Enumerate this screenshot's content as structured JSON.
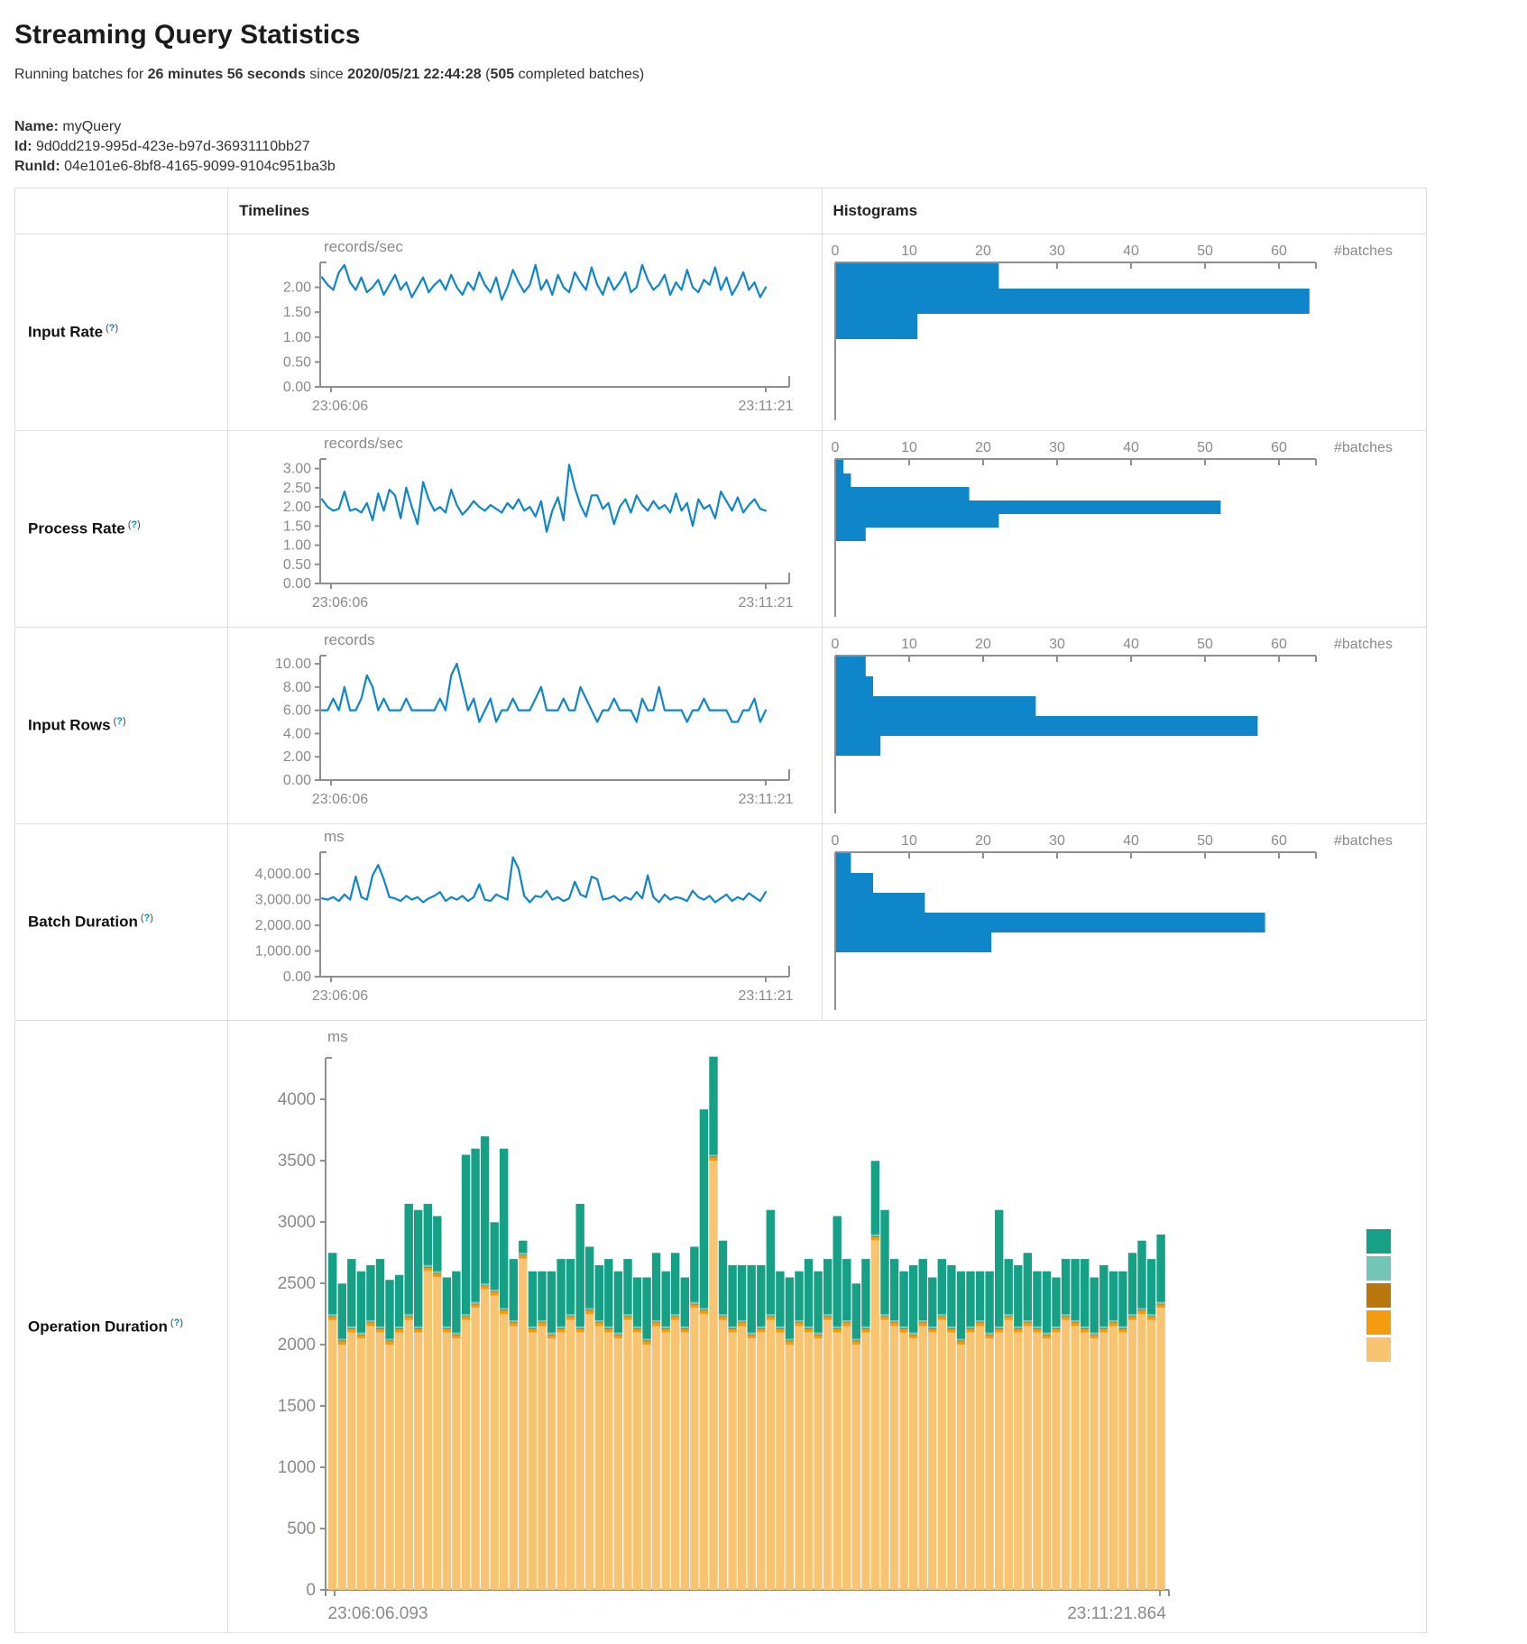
{
  "page": {
    "title": "Streaming Query Statistics",
    "running_line": {
      "prefix": "Running batches for ",
      "duration": "26 minutes 56 seconds",
      "since": " since ",
      "start_time": "2020/05/21 22:44:28",
      "open": " (",
      "batch_count": "505",
      "suffix": " completed batches)"
    },
    "name_label": "Name:",
    "name_value": "myQuery",
    "id_label": "Id:",
    "id_value": "9d0dd219-995d-423e-b97d-36931110bb27",
    "runid_label": "RunId:",
    "runid_value": "04e101e6-8bf8-4165-9099-9104c951ba3b"
  },
  "table": {
    "col_timelines": "Timelines",
    "col_histograms": "Histograms",
    "hint": {
      "open": "(",
      "q": "?",
      "close": ")"
    }
  },
  "colors": {
    "accent_blue": "#0f86c9",
    "axis_gray": "#8f8f8f",
    "tick_text_gray": "#8a8a8a",
    "border_gray": "#dddddd",
    "help_blue": "#0a8ac9"
  },
  "chart_data": [
    {
      "label": "Input Rate",
      "type": "line",
      "unit": "records/sec",
      "x_range": [
        "23:06:06",
        "23:11:21"
      ],
      "ytick_values": [
        2.0,
        1.5,
        1.0,
        0.5,
        0
      ],
      "ytick_labels": [
        "2.00",
        "1.50",
        "1.00",
        "0.50",
        "0.00"
      ],
      "ymax": 2.5,
      "values": [
        2.2,
        2.05,
        1.95,
        2.3,
        2.45,
        2.1,
        1.95,
        2.2,
        1.9,
        2.0,
        2.15,
        1.85,
        2.05,
        2.25,
        1.95,
        2.1,
        1.8,
        2.0,
        2.2,
        1.9,
        2.05,
        2.15,
        1.95,
        2.25,
        2.0,
        1.85,
        2.1,
        1.95,
        2.3,
        2.05,
        1.9,
        2.2,
        1.75,
        2.0,
        2.35,
        2.1,
        1.9,
        2.05,
        2.45,
        1.95,
        2.15,
        1.85,
        2.25,
        2.0,
        1.9,
        2.3,
        2.1,
        1.95,
        2.4,
        2.05,
        1.85,
        2.2,
        1.95,
        2.1,
        2.3,
        1.9,
        2.0,
        2.45,
        2.15,
        1.95,
        2.05,
        2.25,
        1.85,
        2.1,
        1.95,
        2.35,
        2.0,
        1.9,
        2.15,
        2.05,
        2.4,
        1.95,
        2.2,
        1.85,
        2.05,
        2.3,
        1.95,
        2.1,
        1.8,
        2.0
      ],
      "histogram": {
        "type": "bar",
        "orientation": "horizontal",
        "xticks": [
          0,
          10,
          20,
          30,
          40,
          50,
          60
        ],
        "xmax": 65,
        "xlabel": "#batches",
        "bin_counts": [
          22,
          64,
          11
        ]
      }
    },
    {
      "label": "Process Rate",
      "type": "line",
      "unit": "records/sec",
      "x_range": [
        "23:06:06",
        "23:11:21"
      ],
      "ytick_values": [
        3.0,
        2.5,
        2.0,
        1.5,
        1.0,
        0.5,
        0
      ],
      "ytick_labels": [
        "3.00",
        "2.50",
        "2.00",
        "1.50",
        "1.00",
        "0.50",
        "0.00"
      ],
      "ymax": 3.25,
      "values": [
        2.2,
        2.0,
        1.9,
        1.95,
        2.4,
        1.9,
        1.95,
        1.85,
        2.1,
        1.65,
        2.35,
        1.9,
        2.45,
        2.3,
        1.7,
        2.5,
        2.0,
        1.55,
        2.65,
        2.2,
        1.9,
        2.0,
        1.85,
        2.45,
        2.05,
        1.8,
        1.95,
        2.15,
        2.0,
        1.9,
        2.05,
        1.95,
        1.85,
        2.1,
        1.95,
        2.2,
        1.9,
        2.0,
        1.75,
        2.15,
        1.35,
        1.9,
        2.25,
        1.65,
        3.1,
        2.5,
        2.05,
        1.75,
        2.3,
        2.3,
        1.95,
        2.1,
        1.55,
        2.0,
        2.2,
        1.85,
        2.3,
        2.05,
        1.9,
        2.15,
        1.95,
        2.05,
        1.85,
        2.35,
        1.9,
        2.1,
        1.5,
        2.2,
        1.95,
        2.05,
        1.7,
        2.4,
        2.15,
        1.9,
        2.25,
        1.85,
        2.05,
        2.2,
        1.95,
        1.9
      ],
      "histogram": {
        "type": "bar",
        "orientation": "horizontal",
        "xticks": [
          0,
          10,
          20,
          30,
          40,
          50,
          60
        ],
        "xmax": 65,
        "xlabel": "#batches",
        "bin_counts": [
          1,
          2,
          18,
          52,
          22,
          4
        ]
      }
    },
    {
      "label": "Input Rows",
      "type": "line",
      "unit": "records",
      "x_range": [
        "23:06:06",
        "23:11:21"
      ],
      "ytick_values": [
        10,
        8,
        6,
        4,
        2,
        0
      ],
      "ytick_labels": [
        "10.00",
        "8.00",
        "6.00",
        "4.00",
        "2.00",
        "0.00"
      ],
      "ymax": 10.7,
      "values": [
        6,
        6,
        7,
        6,
        8,
        6,
        6,
        7,
        9,
        8,
        6,
        7,
        6,
        6,
        6,
        7,
        6,
        6,
        6,
        6,
        6,
        7,
        6,
        9,
        10,
        8,
        6,
        7,
        5,
        6,
        7,
        5,
        6,
        6,
        7,
        6,
        6,
        6,
        7,
        8,
        6,
        6,
        6,
        7,
        6,
        6,
        8,
        7,
        6,
        5,
        6,
        6,
        7,
        6,
        6,
        6,
        5,
        7,
        6,
        6,
        8,
        6,
        6,
        6,
        6,
        5,
        6,
        6,
        7,
        6,
        6,
        6,
        6,
        5,
        5,
        6,
        6,
        7,
        5,
        6
      ],
      "histogram": {
        "type": "bar",
        "orientation": "horizontal",
        "xticks": [
          0,
          10,
          20,
          30,
          40,
          50,
          60
        ],
        "xmax": 65,
        "xlabel": "#batches",
        "bin_counts": [
          4,
          5,
          27,
          57,
          6
        ]
      }
    },
    {
      "label": "Batch Duration",
      "type": "line",
      "unit": "ms",
      "x_range": [
        "23:06:06",
        "23:11:21"
      ],
      "ytick_values": [
        4000,
        3000,
        2000,
        1000,
        0
      ],
      "ytick_labels": [
        "4,000.00",
        "3,000.00",
        "2,000.00",
        "1,000.00",
        "0.00"
      ],
      "ymax": 4850,
      "values": [
        3050,
        3000,
        3100,
        2950,
        3200,
        3000,
        3900,
        3100,
        3000,
        3950,
        4350,
        3800,
        3100,
        3050,
        2950,
        3150,
        3000,
        3100,
        2900,
        3050,
        3150,
        3300,
        2950,
        3100,
        3000,
        3150,
        2950,
        3100,
        3600,
        3000,
        2950,
        3200,
        3100,
        3000,
        4650,
        4200,
        3150,
        2900,
        3150,
        3100,
        3350,
        3000,
        3100,
        2950,
        3050,
        3700,
        3200,
        3100,
        3900,
        3800,
        3000,
        3050,
        3150,
        2950,
        3100,
        3000,
        3300,
        3050,
        3950,
        3100,
        2900,
        3200,
        3000,
        3100,
        3050,
        2950,
        3350,
        3100,
        3000,
        3150,
        2900,
        3050,
        3200,
        2950,
        3100,
        3000,
        3250,
        3100,
        2950,
        3300
      ],
      "histogram": {
        "type": "bar",
        "orientation": "horizontal",
        "xticks": [
          0,
          10,
          20,
          30,
          40,
          50,
          60
        ],
        "xmax": 65,
        "xlabel": "#batches",
        "bin_counts": [
          2,
          5,
          12,
          58,
          21
        ]
      }
    },
    {
      "label": "Operation Duration",
      "type": "stacked-bar",
      "unit": "ms",
      "x_range": [
        "23:06:06.093",
        "23:11:21.864"
      ],
      "ytick_values": [
        4000,
        3500,
        3000,
        2500,
        2000,
        1500,
        1000,
        500,
        0
      ],
      "ytick_labels": [
        "4000",
        "3500",
        "3000",
        "2500",
        "2000",
        "1500",
        "1000",
        "500",
        "0"
      ],
      "ymax": 4400,
      "legend_colors_top_to_bottom": [
        "#16A085",
        "#73C6B6",
        "#B9770E",
        "#F39C12",
        "#F8C471"
      ],
      "series_bottom_to_top": [
        {
          "name": "light-orange",
          "color": "#F8C471",
          "values": [
            2200,
            2000,
            2100,
            2050,
            2150,
            2100,
            2000,
            2100,
            2200,
            2100,
            2600,
            2550,
            2100,
            2050,
            2200,
            2300,
            2450,
            2400,
            2250,
            2150,
            2700,
            2100,
            2150,
            2050,
            2100,
            2200,
            2100,
            2250,
            2150,
            2100,
            2050,
            2200,
            2100,
            2000,
            2150,
            2100,
            2200,
            2100,
            2300,
            2250,
            3500,
            2200,
            2100,
            2150,
            2050,
            2100,
            2200,
            2100,
            2000,
            2150,
            2100,
            2050,
            2200,
            2100,
            2150,
            2000,
            2100,
            2850,
            2200,
            2150,
            2100,
            2050,
            2150,
            2100,
            2200,
            2100,
            2000,
            2100,
            2150,
            2050,
            2100,
            2200,
            2100,
            2150,
            2100,
            2050,
            2100,
            2200,
            2150,
            2100,
            2050,
            2100,
            2150,
            2100,
            2200,
            2250,
            2200,
            2300
          ]
        },
        {
          "name": "orange",
          "color": "#F39C12",
          "values": 25
        },
        {
          "name": "brown",
          "color": "#B9770E",
          "values": 8
        },
        {
          "name": "light-teal",
          "color": "#73C6B6",
          "values": 15
        },
        {
          "name": "teal",
          "color": "#16A085",
          "values": [
            500,
            450,
            550,
            500,
            450,
            550,
            480,
            420,
            900,
            950,
            500,
            450,
            400,
            500,
            1300,
            1250,
            1200,
            550,
            1300,
            500,
            100,
            450,
            400,
            500,
            550,
            450,
            1000,
            500,
            450,
            550,
            500,
            450,
            400,
            500,
            550,
            450,
            500,
            400,
            450,
            1620,
            800,
            600,
            500,
            450,
            550,
            500,
            850,
            450,
            500,
            400,
            550,
            500,
            450,
            900,
            500,
            450,
            550,
            600,
            850,
            500,
            450,
            550,
            500,
            400,
            450,
            500,
            550,
            450,
            400,
            500,
            950,
            450,
            500,
            550,
            450,
            500,
            400,
            450,
            500,
            550,
            450,
            500,
            400,
            450,
            500,
            550,
            450,
            550
          ]
        }
      ]
    }
  ]
}
